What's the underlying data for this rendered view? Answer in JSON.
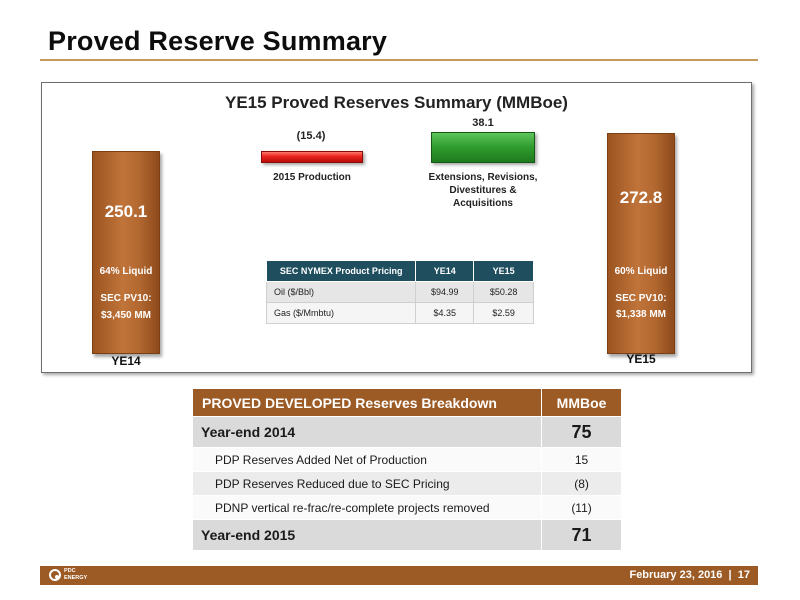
{
  "page": {
    "title": "Proved Reserve Summary",
    "footer_date": "February 23, 2016",
    "page_number": "17",
    "logo_text": [
      "PDC",
      "ENERGY"
    ]
  },
  "chart_data": {
    "type": "bar",
    "title": "YE15 Proved Reserves Summary (MMBoe)",
    "categories": [
      "YE14",
      "2015 Production",
      "Extensions, Revisions, Divestitures & Acquisitions",
      "YE15"
    ],
    "values": [
      250.1,
      -15.4,
      38.1,
      272.8
    ],
    "value_labels": [
      "250.1",
      "(15.4)",
      "38.1",
      "272.8"
    ],
    "bar_annotations": {
      "ye14": {
        "liquid": "64% Liquid",
        "pv_label": "SEC PV10:",
        "pv_value": "$3,450 MM"
      },
      "ye15": {
        "liquid": "60% Liquid",
        "pv_label": "SEC PV10:",
        "pv_value": "$1,338 MM"
      }
    },
    "colors": {
      "total": "#b36a30",
      "decrease": "#e02020",
      "increase": "#2e9a2c"
    }
  },
  "pricing_table": {
    "headers": [
      "SEC NYMEX Product Pricing",
      "YE14",
      "YE15"
    ],
    "rows": [
      [
        "Oil ($/Bbl)",
        "$94.99",
        "$50.28"
      ],
      [
        "Gas ($/Mmbtu)",
        "$4.35",
        "$2.59"
      ]
    ]
  },
  "pd_table": {
    "headers": [
      "PROVED DEVELOPED Reserves Breakdown",
      "MMBoe"
    ],
    "rows": [
      [
        "Year-end 2014",
        "75"
      ],
      [
        "PDP Reserves Added Net of Production",
        "15"
      ],
      [
        "PDP Reserves Reduced due to SEC Pricing",
        "(8)"
      ],
      [
        "PDNP vertical re-frac/re-complete projects removed",
        "(11)"
      ],
      [
        "Year-end 2015",
        "71"
      ]
    ]
  },
  "colors": {
    "brand_brown": "#9c5a24",
    "table_header_teal": "#1f4e5f",
    "title_rule": "#c49a5a"
  }
}
